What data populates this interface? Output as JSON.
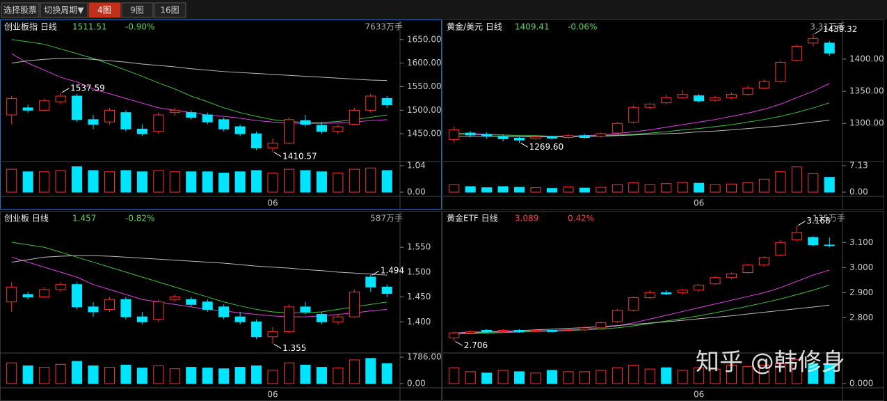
{
  "toolbar": {
    "buttons": [
      "选择股票",
      "切换周期▼",
      "4图",
      "9图",
      "16图"
    ]
  },
  "watermark": "知乎 @韩修身",
  "chart_data": [
    {
      "type": "candlestick",
      "title": "创业板指 日线",
      "price": 1511.51,
      "change": "-0.90%",
      "price_color": "#5fd35f",
      "volume_unit": "7633万手",
      "categories": [
        null,
        null,
        null,
        null,
        null,
        null,
        null,
        null,
        null,
        null,
        null,
        null,
        null,
        null,
        null,
        null,
        "06",
        null,
        null,
        null,
        null,
        null,
        null,
        null
      ],
      "open": [
        1490,
        1505,
        1500,
        1518,
        1530,
        1480,
        1475,
        1495,
        1460,
        1455,
        1495,
        1495,
        1490,
        1480,
        1465,
        1450,
        1420,
        1430,
        1478,
        1468,
        1455,
        1470,
        1500,
        1525
      ],
      "high": [
        1530,
        1512,
        1525,
        1537.59,
        1535,
        1490,
        1505,
        1500,
        1470,
        1495,
        1505,
        1500,
        1495,
        1485,
        1470,
        1455,
        1440,
        1485,
        1490,
        1475,
        1470,
        1505,
        1535,
        1530
      ],
      "low": [
        1470,
        1495,
        1498,
        1512,
        1475,
        1460,
        1470,
        1455,
        1445,
        1450,
        1488,
        1480,
        1470,
        1455,
        1445,
        1415,
        1410.57,
        1428,
        1465,
        1450,
        1450,
        1468,
        1495,
        1505
      ],
      "close": [
        1525,
        1500,
        1520,
        1530,
        1480,
        1470,
        1500,
        1460,
        1450,
        1490,
        1500,
        1485,
        1475,
        1460,
        1450,
        1420,
        1430,
        1480,
        1470,
        1455,
        1465,
        1500,
        1530,
        1511.51
      ],
      "volume": [
        0.9,
        0.8,
        0.8,
        0.85,
        1.0,
        0.85,
        0.8,
        0.85,
        0.8,
        0.85,
        0.8,
        0.8,
        0.8,
        0.75,
        0.8,
        0.85,
        0.75,
        0.9,
        0.85,
        0.8,
        0.75,
        0.9,
        0.95,
        0.85
      ],
      "ma": [
        {
          "color": "#e040e0",
          "values": [
            1620,
            1600,
            1585,
            1570,
            1560,
            1545,
            1535,
            1525,
            1515,
            1505,
            1500,
            1495,
            1490,
            1487,
            1483,
            1478,
            1475,
            1473,
            1472,
            1472,
            1473,
            1475,
            1478,
            1480
          ]
        },
        {
          "color": "#40c040",
          "values": [
            1650,
            1645,
            1640,
            1630,
            1620,
            1610,
            1598,
            1585,
            1572,
            1558,
            1545,
            1530,
            1518,
            1505,
            1495,
            1487,
            1480,
            1476,
            1474,
            1474,
            1476,
            1480,
            1485,
            1490
          ]
        },
        {
          "color": "#bbbbbb",
          "values": [
            1600,
            1605,
            1608,
            1610,
            1610,
            1608,
            1605,
            1602,
            1598,
            1595,
            1592,
            1588,
            1585,
            1582,
            1580,
            1578,
            1576,
            1574,
            1572,
            1570,
            1568,
            1566,
            1564,
            1563
          ]
        }
      ],
      "annotations": [
        {
          "value": 1537.59
        },
        {
          "value": 1410.57
        }
      ],
      "ylim": [
        1397,
        1663
      ],
      "yticks": [
        {
          "value": 1450,
          "label": "1450.00"
        },
        {
          "value": 1500,
          "label": "1500.00"
        },
        {
          "value": 1550,
          "label": "1550.00"
        },
        {
          "value": 1600,
          "label": "1600.00"
        },
        {
          "value": 1650,
          "label": "1650.00"
        }
      ],
      "vol_ylim": [
        0,
        1.04
      ],
      "vol_yticks": [
        {
          "value": 0,
          "label": "0.00"
        },
        1.04
      ]
    },
    {
      "type": "candlestick",
      "title": "创业板 日线",
      "price": 1.457,
      "change": "-0.82%",
      "price_color": "#5fd35f",
      "volume_unit": "587万手",
      "categories": [
        null,
        null,
        null,
        null,
        null,
        null,
        null,
        null,
        null,
        null,
        null,
        null,
        null,
        null,
        null,
        null,
        "06",
        null,
        null,
        null,
        null,
        null,
        null,
        null
      ],
      "open": [
        1.44,
        1.455,
        1.45,
        1.465,
        1.475,
        1.43,
        1.425,
        1.445,
        1.41,
        1.405,
        1.445,
        1.445,
        1.44,
        1.43,
        1.41,
        1.4,
        1.37,
        1.38,
        1.43,
        1.415,
        1.4,
        1.41,
        1.49,
        1.47
      ],
      "high": [
        1.48,
        1.46,
        1.47,
        1.48,
        1.48,
        1.44,
        1.45,
        1.45,
        1.42,
        1.445,
        1.455,
        1.45,
        1.445,
        1.435,
        1.42,
        1.405,
        1.39,
        1.435,
        1.44,
        1.42,
        1.415,
        1.465,
        1.494,
        1.475
      ],
      "low": [
        1.42,
        1.445,
        1.448,
        1.46,
        1.425,
        1.41,
        1.42,
        1.405,
        1.395,
        1.4,
        1.44,
        1.43,
        1.42,
        1.405,
        1.395,
        1.365,
        1.355,
        1.378,
        1.415,
        1.395,
        1.395,
        1.408,
        1.46,
        1.45
      ],
      "close": [
        1.47,
        1.45,
        1.465,
        1.475,
        1.43,
        1.42,
        1.445,
        1.41,
        1.4,
        1.44,
        1.45,
        1.435,
        1.425,
        1.41,
        1.4,
        1.37,
        1.38,
        1.43,
        1.42,
        1.4,
        1.41,
        1.46,
        1.47,
        1.457
      ],
      "volume": [
        1400,
        1200,
        1100,
        1300,
        1500,
        1200,
        1100,
        1250,
        1050,
        1200,
        1000,
        1100,
        1050,
        1000,
        1100,
        1200,
        900,
        1400,
        1250,
        1100,
        1050,
        1600,
        1700,
        1350
      ],
      "ma": [
        {
          "color": "#e040e0",
          "values": [
            1.53,
            1.52,
            1.51,
            1.5,
            1.49,
            1.475,
            1.465,
            1.455,
            1.445,
            1.44,
            1.435,
            1.43,
            1.425,
            1.422,
            1.418,
            1.415,
            1.412,
            1.41,
            1.41,
            1.412,
            1.415,
            1.418,
            1.422,
            1.425
          ]
        },
        {
          "color": "#40c040",
          "values": [
            1.56,
            1.555,
            1.55,
            1.54,
            1.53,
            1.52,
            1.51,
            1.5,
            1.49,
            1.48,
            1.47,
            1.46,
            1.45,
            1.44,
            1.432,
            1.425,
            1.42,
            1.418,
            1.418,
            1.42,
            1.425,
            1.43,
            1.435,
            1.44
          ]
        },
        {
          "color": "#bbbbbb",
          "values": [
            1.52,
            1.525,
            1.53,
            1.532,
            1.533,
            1.533,
            1.532,
            1.53,
            1.528,
            1.526,
            1.524,
            1.522,
            1.52,
            1.518,
            1.515,
            1.512,
            1.51,
            1.508,
            1.505,
            1.503,
            1.5,
            1.498,
            1.496,
            1.494
          ]
        }
      ],
      "annotations": [
        {
          "value": 1.494
        },
        {
          "value": 1.355
        }
      ],
      "ylim": [
        1.343,
        1.595
      ],
      "yticks": [
        {
          "value": 1.4,
          "label": "1.400"
        },
        {
          "value": 1.45,
          "label": "1.450"
        },
        {
          "value": 1.5,
          "label": "1.500"
        },
        {
          "value": 1.55,
          "label": "1.550"
        }
      ],
      "vol_ylim": [
        0,
        1786
      ],
      "vol_yticks": [
        {
          "value": 0,
          "label": "0.00"
        },
        {
          "value": 1786,
          "label": "1786.00"
        }
      ]
    },
    {
      "type": "candlestick",
      "title": "黄金/美元 日线",
      "price": 1409.41,
      "change": "-0.06%",
      "price_color": "#5fd35f",
      "volume_unit": "3.31万手",
      "categories": [
        null,
        null,
        null,
        null,
        null,
        null,
        null,
        null,
        null,
        null,
        null,
        null,
        null,
        null,
        null,
        "06",
        null,
        null,
        null,
        null,
        null,
        null,
        null,
        null
      ],
      "open": [
        1275,
        1285,
        1283,
        1280,
        1277,
        1276,
        1279,
        1278,
        1281,
        1280,
        1285,
        1302,
        1325,
        1332,
        1340,
        1343,
        1336,
        1340,
        1345,
        1355,
        1365,
        1398,
        1425,
        1425
      ],
      "high": [
        1295,
        1288,
        1286,
        1283,
        1279,
        1281,
        1281,
        1283,
        1283,
        1286,
        1302,
        1328,
        1332,
        1345,
        1352,
        1346,
        1343,
        1348,
        1358,
        1368,
        1398,
        1423,
        1439.32,
        1428
      ],
      "low": [
        1270,
        1278,
        1276,
        1272,
        1269.6,
        1274,
        1275,
        1276,
        1276,
        1278,
        1283,
        1300,
        1322,
        1330,
        1338,
        1332,
        1334,
        1338,
        1343,
        1353,
        1363,
        1396,
        1420,
        1405
      ],
      "close": [
        1290,
        1282,
        1280,
        1276,
        1274,
        1279,
        1277,
        1281,
        1278,
        1284,
        1300,
        1325,
        1330,
        1340,
        1345,
        1335,
        1340,
        1345,
        1355,
        1365,
        1395,
        1420,
        1432,
        1409.41
      ],
      "volume": [
        2.0,
        1.5,
        1.2,
        1.5,
        1.3,
        1.2,
        1.0,
        1.4,
        1.1,
        1.3,
        2.0,
        2.5,
        2.0,
        2.3,
        2.6,
        2.4,
        2.0,
        2.2,
        2.6,
        3.5,
        5.5,
        6.8,
        5.0,
        4.0
      ],
      "ma": [
        {
          "color": "#e040e0",
          "values": [
            1285,
            1284,
            1283,
            1282,
            1281,
            1280,
            1280,
            1280,
            1281,
            1282,
            1284,
            1287,
            1290,
            1294,
            1298,
            1302,
            1306,
            1311,
            1316,
            1322,
            1330,
            1340,
            1350,
            1362
          ]
        },
        {
          "color": "#40c040",
          "values": [
            1283,
            1283,
            1282,
            1282,
            1281,
            1281,
            1280,
            1280,
            1280,
            1281,
            1282,
            1283,
            1285,
            1287,
            1290,
            1292,
            1295,
            1298,
            1302,
            1306,
            1311,
            1317,
            1324,
            1332
          ]
        },
        {
          "color": "#bbbbbb",
          "values": [
            1280,
            1280,
            1280,
            1279,
            1279,
            1279,
            1279,
            1279,
            1280,
            1280,
            1281,
            1282,
            1283,
            1284,
            1285,
            1287,
            1288,
            1290,
            1292,
            1294,
            1296,
            1299,
            1302,
            1305
          ]
        }
      ],
      "annotations": [
        {
          "value": 1439.32
        },
        {
          "value": 1269.6,
          "label": "1269.60"
        }
      ],
      "ylim": [
        1245,
        1440
      ],
      "yticks": [
        {
          "value": 1300,
          "label": "1300.00"
        },
        {
          "value": 1350,
          "label": "1350.00"
        },
        {
          "value": 1400,
          "label": "1400.00"
        }
      ],
      "vol_ylim": [
        0,
        7.13
      ],
      "vol_yticks": [
        {
          "value": 0,
          "label": "0.00"
        },
        7.13
      ]
    },
    {
      "type": "candlestick",
      "title": "黄金ETF 日线",
      "price": 3.089,
      "change": "0.42%",
      "price_color": "#ff4040",
      "volume_unit": "135万手",
      "categories": [
        null,
        null,
        null,
        null,
        null,
        null,
        null,
        null,
        null,
        null,
        null,
        null,
        null,
        null,
        null,
        "06",
        null,
        null,
        null,
        null,
        null,
        null,
        null,
        null
      ],
      "open": [
        2.72,
        2.74,
        2.75,
        2.745,
        2.75,
        2.745,
        2.75,
        2.75,
        2.752,
        2.76,
        2.785,
        2.83,
        2.88,
        2.9,
        2.9,
        2.91,
        2.935,
        2.96,
        2.98,
        3.01,
        3.05,
        3.11,
        3.12,
        3.09
      ],
      "high": [
        2.745,
        2.75,
        2.755,
        2.755,
        2.755,
        2.755,
        2.755,
        2.756,
        2.765,
        2.785,
        2.835,
        2.885,
        2.91,
        2.91,
        2.915,
        2.935,
        2.965,
        2.98,
        3.015,
        3.045,
        3.11,
        3.168,
        3.125,
        3.12
      ],
      "low": [
        2.706,
        2.735,
        2.74,
        2.74,
        2.74,
        2.742,
        2.742,
        2.745,
        2.748,
        2.757,
        2.78,
        2.825,
        2.875,
        2.89,
        2.89,
        2.905,
        2.93,
        2.955,
        2.975,
        3.005,
        3.045,
        3.105,
        3.085,
        3.08
      ],
      "close": [
        2.74,
        2.745,
        2.745,
        2.75,
        2.745,
        2.75,
        2.745,
        2.752,
        2.76,
        2.78,
        2.83,
        2.88,
        2.9,
        2.895,
        2.91,
        2.93,
        2.96,
        2.975,
        3.01,
        3.04,
        3.1,
        3.14,
        3.09,
        3.089
      ],
      "volume": [
        6,
        4.5,
        4,
        5,
        4.5,
        4,
        5,
        4.5,
        4.5,
        5,
        6,
        7,
        5.5,
        6,
        5,
        6,
        5.5,
        7,
        6.5,
        7,
        7.5,
        9,
        7.5,
        7
      ],
      "ma": [
        {
          "color": "#e040e0",
          "values": [
            2.74,
            2.74,
            2.742,
            2.744,
            2.746,
            2.748,
            2.75,
            2.752,
            2.755,
            2.76,
            2.768,
            2.78,
            2.795,
            2.81,
            2.825,
            2.84,
            2.855,
            2.87,
            2.885,
            2.9,
            2.92,
            2.945,
            2.97,
            2.99
          ]
        },
        {
          "color": "#40c040",
          "values": [
            2.735,
            2.737,
            2.739,
            2.741,
            2.743,
            2.745,
            2.747,
            2.749,
            2.752,
            2.755,
            2.76,
            2.768,
            2.777,
            2.787,
            2.797,
            2.808,
            2.82,
            2.833,
            2.846,
            2.86,
            2.875,
            2.892,
            2.91,
            2.93
          ]
        },
        {
          "color": "#bbbbbb",
          "values": [
            2.74,
            2.742,
            2.744,
            2.746,
            2.749,
            2.752,
            2.755,
            2.758,
            2.761,
            2.765,
            2.769,
            2.774,
            2.779,
            2.784,
            2.79,
            2.796,
            2.802,
            2.808,
            2.815,
            2.822,
            2.829,
            2.836,
            2.843,
            2.85
          ]
        }
      ],
      "annotations": [
        {
          "value": 3.168
        },
        {
          "value": 2.706
        }
      ],
      "ylim": [
        2.671,
        3.17
      ],
      "yticks": [
        {
          "value": 2.8,
          "label": "2.800"
        },
        {
          "value": 2.9,
          "label": "2.900"
        },
        {
          "value": 3,
          "label": "3.000"
        },
        {
          "value": 3.1,
          "label": "3.100"
        }
      ],
      "vol_ylim": [
        0,
        10
      ],
      "vol_yticks": [
        {
          "value": 0,
          "label": "0.000"
        }
      ]
    }
  ]
}
